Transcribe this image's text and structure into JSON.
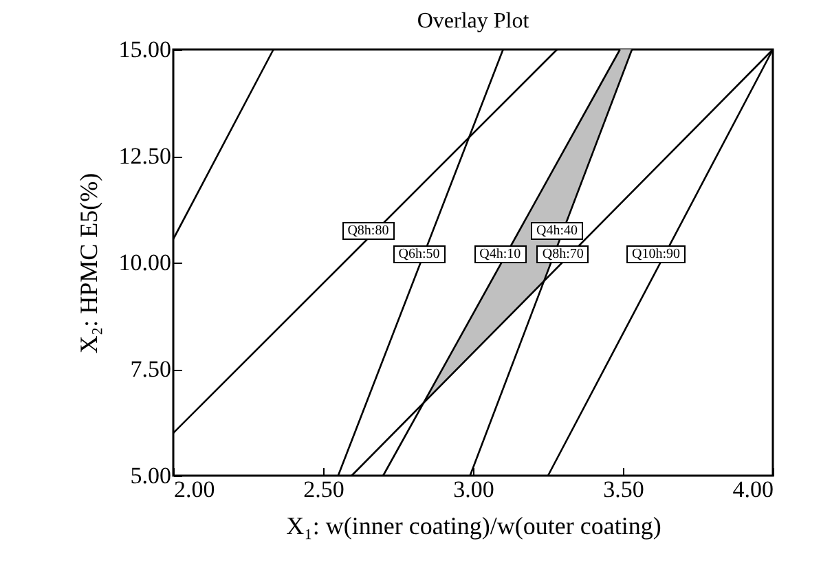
{
  "chart_data": {
    "type": "line",
    "title": "Overlay Plot",
    "xlabel": "X₁: w(inner coating)/w(outer coating)",
    "ylabel": "X₂: HPMC E5(%)",
    "xlim": [
      2,
      4
    ],
    "ylim": [
      5,
      15
    ],
    "xticks": [
      {
        "value": 2,
        "label": "2.00"
      },
      {
        "value": 2.5,
        "label": "2.50"
      },
      {
        "value": 3,
        "label": "3.00"
      },
      {
        "value": 3.5,
        "label": "3.50"
      },
      {
        "value": 4,
        "label": "4.00"
      }
    ],
    "yticks": [
      {
        "value": 5,
        "label": "5.00"
      },
      {
        "value": 7.5,
        "label": "7.50"
      },
      {
        "value": 10,
        "label": "10.00"
      },
      {
        "value": 12.5,
        "label": "12.50"
      },
      {
        "value": 15,
        "label": "15.00"
      }
    ],
    "series": [
      {
        "type": "area",
        "color": "#c0c0c0",
        "x": [
          2.835,
          3.237,
          3.53,
          3.49
        ],
        "values": [
          6.71,
          9.57,
          15,
          15
        ]
      },
      {
        "color": "#000000",
        "x": [
          2,
          2.334
        ],
        "values": [
          10.55,
          15
        ]
      },
      {
        "color": "#000000",
        "x": [
          2,
          3.28
        ],
        "values": [
          6,
          15
        ]
      },
      {
        "color": "#000000",
        "x": [
          2.55,
          3.1
        ],
        "values": [
          5,
          15
        ]
      },
      {
        "color": "#000000",
        "x": [
          2.595,
          4
        ],
        "values": [
          5,
          15
        ]
      },
      {
        "color": "#000000",
        "x": [
          2.7,
          3.49
        ],
        "values": [
          5,
          15
        ]
      },
      {
        "color": "#000000",
        "x": [
          2.99,
          3.53
        ],
        "values": [
          5,
          15
        ]
      },
      {
        "color": "#000000",
        "x": [
          3.25,
          4
        ],
        "values": [
          5,
          15
        ]
      }
    ],
    "annotations": [
      {
        "text": "Q8h:80",
        "x": 2.65,
        "y": 10.75
      },
      {
        "text": "Q6h:50",
        "x": 2.82,
        "y": 10.2
      },
      {
        "text": "Q4h:10",
        "x": 3.09,
        "y": 10.2
      },
      {
        "text": "Q4h:40",
        "x": 3.28,
        "y": 10.75
      },
      {
        "text": "Q8h:70",
        "x": 3.3,
        "y": 10.2
      },
      {
        "text": "Q10h:90",
        "x": 3.61,
        "y": 10.2
      }
    ]
  }
}
